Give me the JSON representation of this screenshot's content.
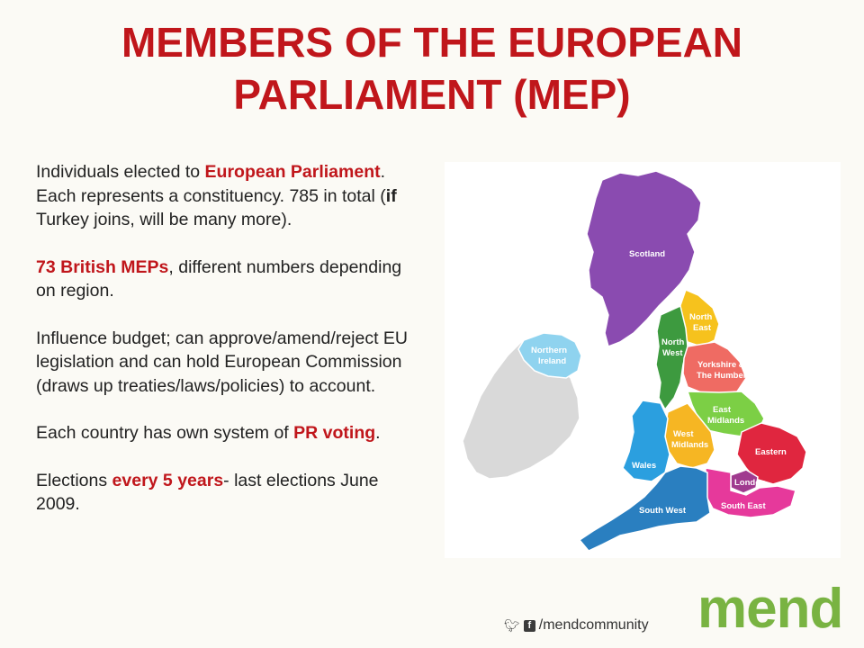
{
  "slide": {
    "title_line1": "MEMBERS OF THE EUROPEAN",
    "title_line2": "PARLIAMENT (MEP)"
  },
  "paragraphs": {
    "p1": {
      "a": "Individuals elected to ",
      "b": "European Parliament",
      "c": ". Each represents a constituency. 785 in total (",
      "d": "if",
      "e": " Turkey joins, will be many more)."
    },
    "p2": {
      "a": "73 British MEPs",
      "b": ", different numbers depending on region."
    },
    "p3": {
      "a": "Influence budget; can approve/amend/reject EU legislation and can hold European Commission (draws up treaties/laws/policies) to account."
    },
    "p4": {
      "a": "Each country has own system of ",
      "b": "PR voting",
      "c": "."
    },
    "p5": {
      "a": "Elections ",
      "b": "every 5 years",
      "c": "- last elections June 2009."
    }
  },
  "map": {
    "labels": {
      "scotland": "Scotland",
      "north_east_1": "North",
      "north_east_2": "East",
      "north_west_1": "North",
      "north_west_2": "West",
      "northern_ireland_1": "Northern",
      "northern_ireland_2": "Ireland",
      "yorkshire_1": "Yorkshire &",
      "yorkshire_2": "The Humber",
      "east_midlands_1": "East",
      "east_midlands_2": "Midlands",
      "west_midlands_1": "West",
      "west_midlands_2": "Midlands",
      "eastern": "Eastern",
      "wales": "Wales",
      "london": "London",
      "south_east": "South East",
      "south_west": "South West"
    },
    "colors": {
      "scotland": "#8a4bb0",
      "north_east": "#f6c21d",
      "north_west": "#3d9a3f",
      "northern_ireland": "#8fd3ef",
      "ireland": "#d9d9d9",
      "yorkshire": "#ef6b63",
      "east_midlands": "#7ccf45",
      "west_midlands": "#f6b623",
      "eastern": "#e0263f",
      "wales": "#2b9fdf",
      "london": "#a03a8f",
      "south_east": "#e6399b",
      "south_west": "#2a7fc0"
    }
  },
  "footer": {
    "handle": "/mendcommunity",
    "logo": "mend",
    "icons": [
      "twitter-icon",
      "facebook-icon"
    ]
  },
  "theme": {
    "accent": "#c0161b",
    "logo_green": "#79b342"
  }
}
